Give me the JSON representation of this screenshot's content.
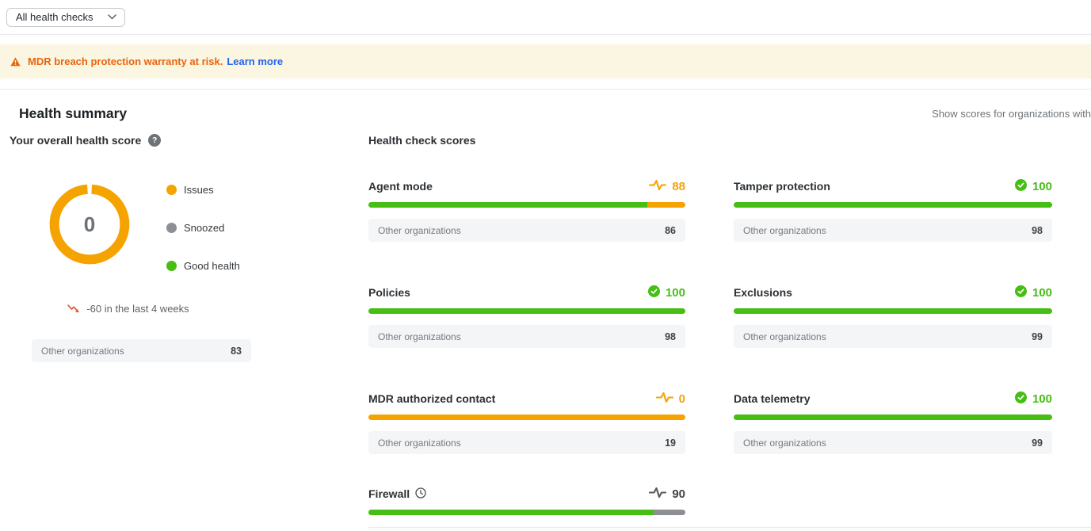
{
  "colors": {
    "green": "#46be14",
    "orange": "#f5a300",
    "gray": "#8c8f93",
    "dark": "#3e4347"
  },
  "filter": {
    "label": "All health checks"
  },
  "banner": {
    "text": "MDR breach protection warranty at risk.",
    "link_label": "Learn more"
  },
  "header": {
    "title": "Health summary",
    "right_note": "Show scores for organizations with"
  },
  "overall": {
    "title": "Your overall health score",
    "donut_value": "0",
    "donut_color": "orange",
    "legend": [
      {
        "label": "Issues",
        "color": "orange"
      },
      {
        "label": "Snoozed",
        "color": "gray"
      },
      {
        "label": "Good health",
        "color": "green"
      }
    ],
    "trend_text": "-60 in the last 4 weeks",
    "benchmark": {
      "label": "Other organizations",
      "value": "83"
    }
  },
  "scores": {
    "title": "Health check scores",
    "cards": [
      {
        "name": "Agent mode",
        "score": "88",
        "status": "issue",
        "title_icon": null,
        "segments": [
          {
            "color": "green",
            "pct": 88
          },
          {
            "color": "orange",
            "pct": 12
          }
        ],
        "benchmark": {
          "label": "Other organizations",
          "value": "86"
        }
      },
      {
        "name": "Tamper protection",
        "score": "100",
        "status": "good",
        "title_icon": null,
        "segments": [
          {
            "color": "green",
            "pct": 100
          }
        ],
        "benchmark": {
          "label": "Other organizations",
          "value": "98"
        }
      },
      {
        "name": "Policies",
        "score": "100",
        "status": "good",
        "title_icon": null,
        "segments": [
          {
            "color": "green",
            "pct": 100
          }
        ],
        "benchmark": {
          "label": "Other organizations",
          "value": "98"
        }
      },
      {
        "name": "Exclusions",
        "score": "100",
        "status": "good",
        "title_icon": null,
        "segments": [
          {
            "color": "green",
            "pct": 100
          }
        ],
        "benchmark": {
          "label": "Other organizations",
          "value": "99"
        }
      },
      {
        "name": "MDR authorized contact",
        "score": "0",
        "status": "issue",
        "title_icon": null,
        "segments": [
          {
            "color": "orange",
            "pct": 100
          }
        ],
        "benchmark": {
          "label": "Other organizations",
          "value": "19"
        }
      },
      {
        "name": "Data telemetry",
        "score": "100",
        "status": "good",
        "title_icon": null,
        "segments": [
          {
            "color": "green",
            "pct": 100
          }
        ],
        "benchmark": {
          "label": "Other organizations",
          "value": "99"
        }
      },
      {
        "name": "Firewall",
        "score": "90",
        "status": "snoozed",
        "title_icon": "clock",
        "segments": [
          {
            "color": "green",
            "pct": 90
          },
          {
            "color": "gray",
            "pct": 10
          }
        ],
        "benchmark": null
      }
    ]
  }
}
